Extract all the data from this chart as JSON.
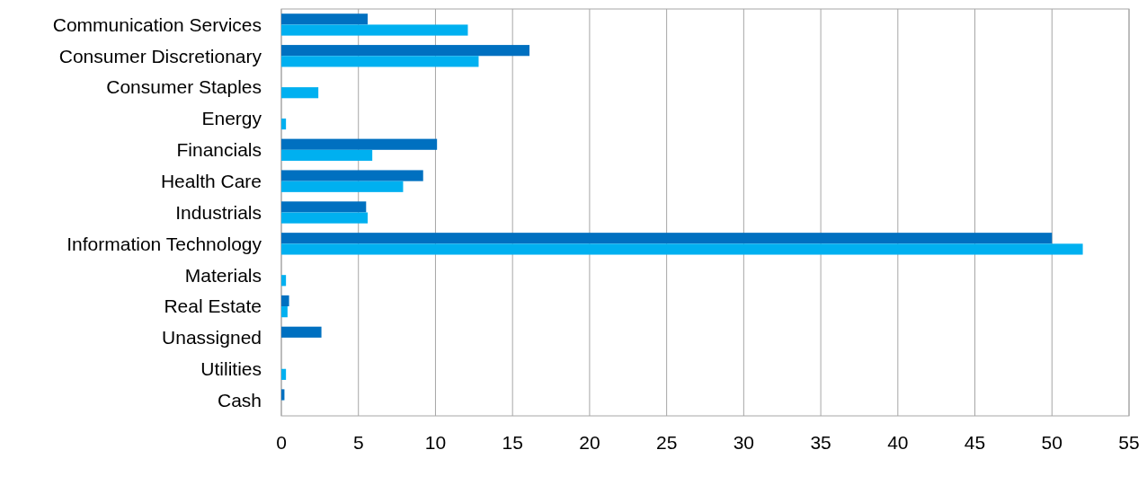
{
  "chart_data": {
    "type": "bar",
    "orientation": "horizontal",
    "categories": [
      "Communication Services",
      "Consumer Discretionary",
      "Consumer Staples",
      "Energy",
      "Financials",
      "Health Care",
      "Industrials",
      "Information Technology",
      "Materials",
      "Real Estate",
      "Unassigned",
      "Utilities",
      "Cash"
    ],
    "series": [
      {
        "color": "#0070c0",
        "values": [
          5.6,
          16.1,
          null,
          null,
          10.1,
          9.2,
          5.5,
          50.0,
          null,
          0.5,
          2.6,
          null,
          0.2
        ]
      },
      {
        "color": "#00b0f0",
        "values": [
          12.1,
          12.8,
          2.4,
          0.3,
          5.9,
          7.9,
          5.6,
          52.0,
          0.3,
          0.4,
          null,
          0.3,
          null
        ]
      }
    ],
    "xlim": [
      0,
      55
    ],
    "xticks": [
      0,
      5,
      10,
      15,
      20,
      25,
      30,
      35,
      40,
      45,
      50,
      55
    ],
    "grid": "x"
  }
}
